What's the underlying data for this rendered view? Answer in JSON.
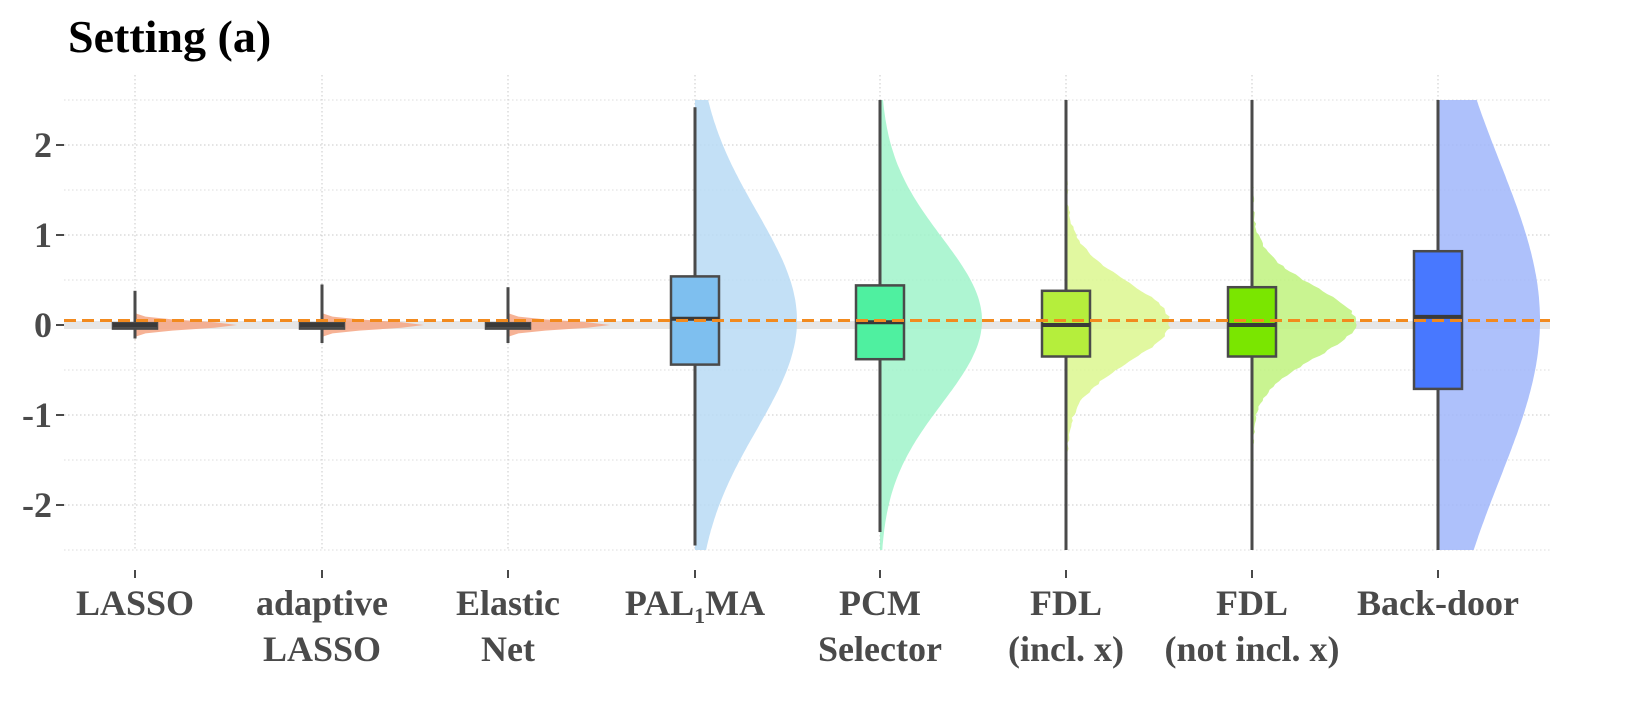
{
  "chart_data": {
    "type": "raincloud",
    "title": "Setting (a)",
    "xlabel": "",
    "ylabel": "",
    "ylim": [
      -2.5,
      2.5
    ],
    "yticks": [
      -2,
      -1,
      0,
      1,
      2
    ],
    "ytick_labels": [
      "-2",
      "-1",
      "0",
      "1",
      "2"
    ],
    "grid": true,
    "reference_line": {
      "y": 0.05,
      "color": "#f28a1e",
      "style": "dashed"
    },
    "zero_band": {
      "y": 0.0,
      "color": "#e6e6e6"
    },
    "categories": [
      {
        "lines": [
          "LASSO"
        ]
      },
      {
        "lines": [
          "adaptive",
          "LASSO"
        ]
      },
      {
        "lines": [
          "Elastic",
          "Net"
        ]
      },
      {
        "lines": [
          "PAL",
          "MA"
        ],
        "subscript": "1"
      },
      {
        "lines": [
          "PCM",
          "Selector"
        ]
      },
      {
        "lines": [
          "FDL",
          "(incl. x)"
        ]
      },
      {
        "lines": [
          "FDL",
          "(not incl. x)"
        ]
      },
      {
        "lines": [
          "Back-door"
        ]
      }
    ],
    "series": [
      {
        "box": {
          "q1": -0.04,
          "median": 0.0,
          "q3": 0.02,
          "whisker_low": -0.15,
          "whisker_high": 0.38
        },
        "density": {
          "center": 0.0,
          "sd": 0.02,
          "peak": 0.5,
          "skew": 0,
          "rough": false
        },
        "fill": "#555555",
        "cloud": "#f4a582"
      },
      {
        "box": {
          "q1": -0.04,
          "median": 0.0,
          "q3": 0.02,
          "whisker_low": -0.2,
          "whisker_high": 0.45
        },
        "density": {
          "center": 0.0,
          "sd": 0.02,
          "peak": 0.5,
          "skew": 0,
          "rough": false
        },
        "fill": "#555555",
        "cloud": "#f4a582"
      },
      {
        "box": {
          "q1": -0.04,
          "median": 0.0,
          "q3": 0.02,
          "whisker_low": -0.2,
          "whisker_high": 0.42
        },
        "density": {
          "center": 0.0,
          "sd": 0.02,
          "peak": 0.5,
          "skew": 0,
          "rough": false
        },
        "fill": "#555555",
        "cloud": "#f4a582"
      },
      {
        "box": {
          "q1": -0.44,
          "median": 0.07,
          "q3": 0.54,
          "whisker_low": -2.45,
          "whisker_high": 2.42
        },
        "density": {
          "center": 0.05,
          "sd": 0.55,
          "peak": 0.55,
          "skew": 0,
          "rough": false
        },
        "fill": "#7ebfef",
        "cloud": "#b8dbf5"
      },
      {
        "box": {
          "q1": -0.38,
          "median": 0.03,
          "q3": 0.44,
          "whisker_low": -2.3,
          "whisker_high": 2.5
        },
        "density": {
          "center": 0.05,
          "sd": 0.42,
          "peak": 0.55,
          "skew": 0,
          "rough": false
        },
        "fill": "#4ff0a0",
        "cloud": "#a0f3ca"
      },
      {
        "box": {
          "q1": -0.35,
          "median": 0.0,
          "q3": 0.38,
          "whisker_low": -2.5,
          "whisker_high": 2.5
        },
        "density": {
          "center": 0.03,
          "sd": 0.2,
          "peak": 0.55,
          "skew": 0,
          "rough": true
        },
        "fill": "#b5ee3c",
        "cloud": "#dcf78f"
      },
      {
        "box": {
          "q1": -0.35,
          "median": 0.0,
          "q3": 0.42,
          "whisker_low": -2.5,
          "whisker_high": 2.5
        },
        "density": {
          "center": 0.03,
          "sd": 0.18,
          "peak": 0.55,
          "skew": 0,
          "rough": true
        },
        "fill": "#7ae600",
        "cloud": "#bff27e"
      },
      {
        "box": {
          "q1": -0.71,
          "median": 0.09,
          "q3": 0.82,
          "whisker_low": -2.5,
          "whisker_high": 2.5
        },
        "density": {
          "center": 0.05,
          "sd": 0.8,
          "peak": 0.55,
          "skew": 0,
          "rough": false
        },
        "fill": "#4878ff",
        "cloud": "#a0b6fa"
      }
    ]
  }
}
